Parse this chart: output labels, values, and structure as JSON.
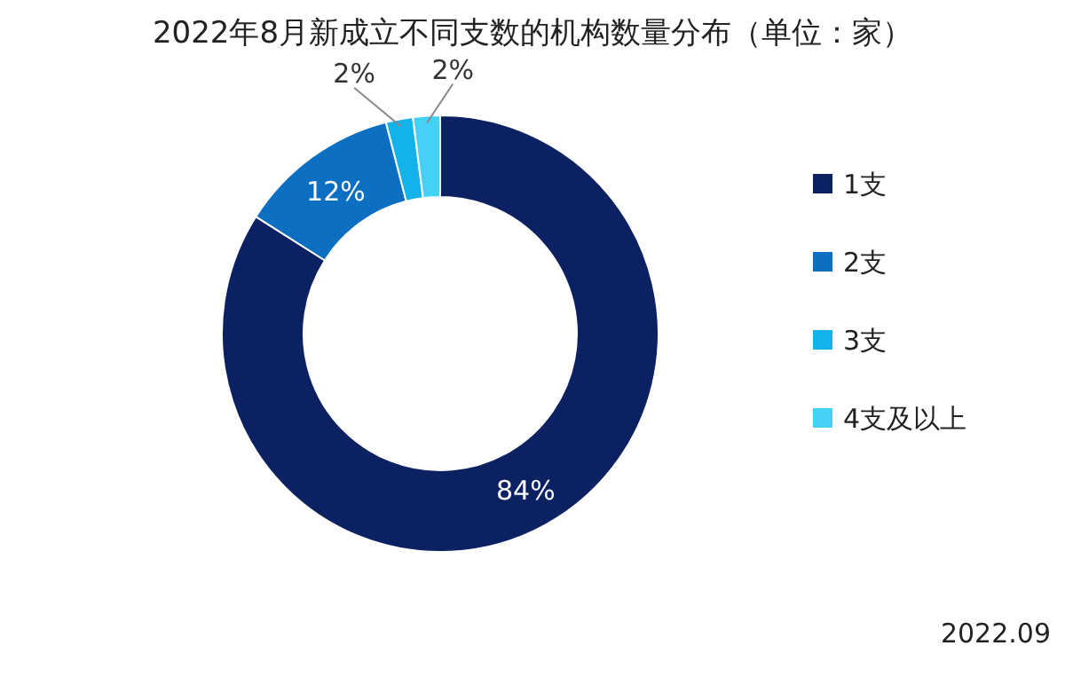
{
  "chart_data": {
    "type": "donut",
    "title": "2022年8月新成立不同支数的机构数量分布（单位：家）",
    "categories": [
      "1支",
      "2支",
      "3支",
      "4支及以上"
    ],
    "values": [
      84,
      12,
      2,
      2
    ],
    "colors": [
      "#0b2161",
      "#0c6fc1",
      "#14b2ea",
      "#45d0f6"
    ],
    "value_labels": [
      "84%",
      "12%",
      "2%",
      "2%"
    ],
    "legend": "right",
    "annotations": [
      "2022.09"
    ]
  }
}
